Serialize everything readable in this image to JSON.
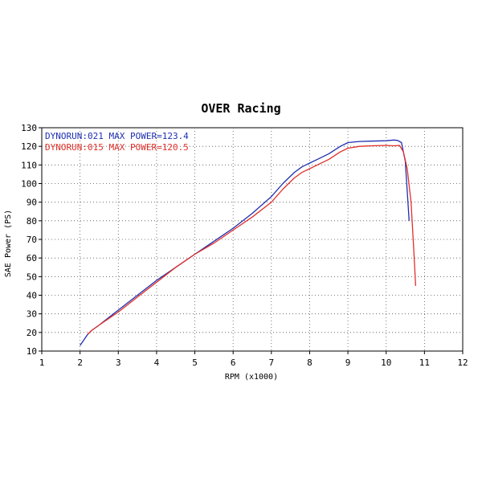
{
  "chart_data": {
    "type": "line",
    "title": "OVER Racing",
    "xlabel": "RPM (x1000)",
    "ylabel": "SAE Power (PS)",
    "xlim": [
      1,
      12
    ],
    "ylim": [
      10,
      130
    ],
    "x_ticks": [
      1,
      2,
      3,
      4,
      5,
      6,
      7,
      8,
      9,
      10,
      11,
      12
    ],
    "y_ticks": [
      10,
      20,
      30,
      40,
      50,
      60,
      70,
      80,
      90,
      100,
      110,
      120,
      130
    ],
    "grid": true,
    "legend_position": "top-left",
    "series": [
      {
        "name": "DYNORUN:021",
        "legend_label": "DYNORUN:021  MAX POWER=123.4",
        "color": "#1f2fb0",
        "x": [
          2.0,
          2.1,
          2.2,
          2.3,
          2.5,
          3.0,
          3.5,
          4.0,
          4.5,
          5.0,
          5.5,
          6.0,
          6.5,
          7.0,
          7.3,
          7.6,
          7.8,
          8.0,
          8.2,
          8.5,
          8.8,
          9.0,
          9.3,
          9.6,
          10.0,
          10.2,
          10.3,
          10.4,
          10.5,
          10.6
        ],
        "y": [
          13,
          16,
          19,
          21,
          24,
          32,
          40,
          48,
          55,
          62,
          69,
          76,
          84,
          93,
          100,
          106,
          109,
          111,
          113,
          116,
          120,
          122,
          122.6,
          122.8,
          123,
          123.4,
          123.2,
          122,
          112,
          80
        ]
      },
      {
        "name": "DYNORUN:015",
        "legend_label": "DYNORUN:015  MAX POWER=120.5",
        "color": "#e0302a",
        "x": [
          2.2,
          2.3,
          2.5,
          3.0,
          3.5,
          4.0,
          4.5,
          5.0,
          5.5,
          6.0,
          6.5,
          7.0,
          7.3,
          7.6,
          7.8,
          8.0,
          8.2,
          8.5,
          8.8,
          9.0,
          9.3,
          9.6,
          10.0,
          10.2,
          10.35,
          10.45,
          10.55,
          10.65,
          10.72,
          10.77
        ],
        "y": [
          19,
          21,
          24,
          31,
          39,
          47,
          55,
          62,
          68,
          75,
          82,
          90,
          97,
          103,
          106,
          108,
          110,
          113,
          117,
          119,
          120,
          120.3,
          120.5,
          120.3,
          120.5,
          117,
          108,
          90,
          65,
          45
        ]
      }
    ]
  }
}
